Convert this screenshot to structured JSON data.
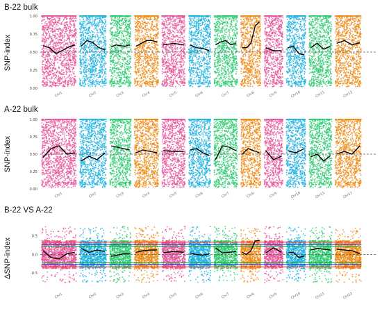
{
  "colors": {
    "chr_palette": [
      "#e8569b",
      "#1fb3e0",
      "#2ecb71",
      "#ef8b16"
    ],
    "trend": "#000000",
    "reference_line": "#555555",
    "threshold_red": "#e8322b",
    "threshold_blue": "#2233c8",
    "threshold_green": "#1ea64a"
  },
  "chart_data": [
    {
      "type": "scatter",
      "title": "B-22 bulk",
      "ylabel": "SNP-index",
      "xlabel": "",
      "ylim": [
        0,
        1
      ],
      "yticks": [
        "0.00",
        "0.25",
        "0.50",
        "0.75",
        "1.00"
      ],
      "reference_line": 0.5,
      "grid": false,
      "categories": [
        "Chr1",
        "Chr2",
        "Chr3",
        "Chr4",
        "Chr5",
        "Chr6",
        "Chr7",
        "Chr8",
        "Chr9",
        "Chr10",
        "Chr11",
        "Chr12"
      ],
      "series": [
        {
          "values": [
            0.59,
            0.56,
            0.48,
            0.52,
            0.57,
            0.6
          ]
        },
        {
          "values": [
            0.58,
            0.66,
            0.63,
            0.56,
            0.53
          ]
        },
        {
          "values": [
            0.57,
            0.6,
            0.59,
            0.58,
            0.6
          ]
        },
        {
          "values": [
            0.58,
            0.62,
            0.66,
            0.66,
            0.64
          ]
        },
        {
          "values": [
            0.6,
            0.62,
            0.6
          ]
        },
        {
          "values": [
            0.6,
            0.56,
            0.55,
            0.52
          ]
        },
        {
          "values": [
            0.6,
            0.64,
            0.66,
            0.6,
            0.62
          ]
        },
        {
          "values": [
            0.56,
            0.56,
            0.62,
            0.86,
            0.92
          ]
        },
        {
          "values": [
            0.56,
            0.52,
            0.52
          ]
        },
        {
          "values": [
            0.56,
            0.58,
            0.48,
            0.46
          ]
        },
        {
          "values": [
            0.56,
            0.62,
            0.54,
            0.58
          ]
        },
        {
          "values": [
            0.62,
            0.66,
            0.6,
            0.63
          ]
        }
      ]
    },
    {
      "type": "scatter",
      "title": "A-22 bulk",
      "ylabel": "SNP-index",
      "xlabel": "",
      "ylim": [
        0,
        1
      ],
      "yticks": [
        "0.00",
        "0.25",
        "0.50",
        "0.75",
        "1.00"
      ],
      "reference_line": 0.5,
      "grid": false,
      "categories": [
        "Chr1",
        "Chr2",
        "Chr3",
        "Chr4",
        "Chr5",
        "Chr6",
        "Chr7",
        "Chr8",
        "Chr9",
        "Chr10",
        "Chr11",
        "Chr12"
      ],
      "series": [
        {
          "values": [
            0.45,
            0.58,
            0.62,
            0.5,
            0.52
          ]
        },
        {
          "values": [
            0.4,
            0.47,
            0.42,
            0.52
          ]
        },
        {
          "values": [
            0.62,
            0.6,
            0.58,
            0.56
          ]
        },
        {
          "values": [
            0.52,
            0.56,
            0.54,
            0.52
          ]
        },
        {
          "values": [
            0.55,
            0.54,
            0.54
          ]
        },
        {
          "values": [
            0.56,
            0.58,
            0.52,
            0.48
          ]
        },
        {
          "values": [
            0.42,
            0.62,
            0.6,
            0.55
          ]
        },
        {
          "values": [
            0.5,
            0.58,
            0.55,
            0.52
          ]
        },
        {
          "values": [
            0.55,
            0.42,
            0.47
          ]
        },
        {
          "values": [
            0.55,
            0.52,
            0.58
          ]
        },
        {
          "values": [
            0.46,
            0.5,
            0.4,
            0.48
          ]
        },
        {
          "values": [
            0.5,
            0.54,
            0.5,
            0.62
          ]
        }
      ]
    },
    {
      "type": "scatter",
      "title": "B-22 VS A-22",
      "ylabel": "ΔSNP-index",
      "xlabel": "",
      "ylim": [
        -0.9,
        0.9
      ],
      "yticks": [
        "-0.5",
        "0.0",
        "0.5"
      ],
      "reference_line": 0.0,
      "thresholds": {
        "red": [
          0.33,
          -0.33
        ],
        "blue": [
          0.27,
          -0.27
        ],
        "green": [
          0.22,
          -0.22
        ]
      },
      "grid": false,
      "categories": [
        "Chr1",
        "Chr2",
        "Chr3",
        "Chr4",
        "Chr5",
        "Chr6",
        "Chr7",
        "Chr8",
        "Chr9",
        "Chr10",
        "Chr11",
        "Chr12"
      ],
      "series": [
        {
          "values": [
            0.1,
            -0.08,
            -0.12,
            0.02,
            0.06
          ]
        },
        {
          "values": [
            0.16,
            0.06,
            0.12,
            0.08
          ]
        },
        {
          "values": [
            -0.05,
            -0.02,
            0.02,
            0.02
          ]
        },
        {
          "values": [
            0.06,
            0.1,
            0.12,
            0.12
          ]
        },
        {
          "values": [
            0.05,
            0.08,
            0.06
          ]
        },
        {
          "values": [
            0.04,
            0.0,
            -0.02,
            0.02
          ]
        },
        {
          "values": [
            0.18,
            0.04,
            0.06,
            0.08
          ]
        },
        {
          "values": [
            0.06,
            0.0,
            0.1,
            0.36,
            0.38
          ]
        },
        {
          "values": [
            0.04,
            0.18,
            0.06
          ]
        },
        {
          "values": [
            0.04,
            0.06,
            -0.08,
            -0.04
          ]
        },
        {
          "values": [
            0.12,
            0.16,
            0.14,
            0.12
          ]
        },
        {
          "values": [
            0.14,
            0.12,
            0.1,
            0.02
          ]
        }
      ]
    }
  ]
}
